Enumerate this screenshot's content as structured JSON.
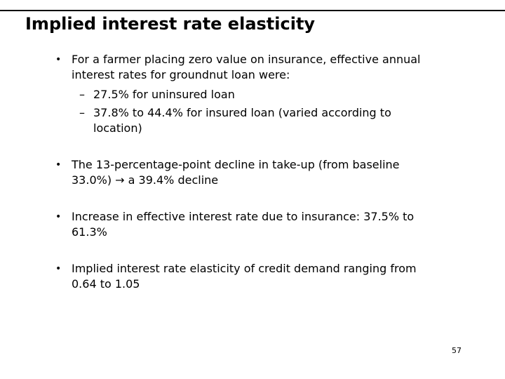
{
  "slide": {
    "title": "Implied interest rate elasticity",
    "page_number": "57",
    "markers": {
      "level1": "•",
      "level2": "–"
    },
    "colors": {
      "text": "#000000",
      "background": "#ffffff",
      "rule": "#000000"
    },
    "bullets": [
      {
        "lines": [
          "For a farmer placing zero value on insurance, effective annual",
          "interest rates for groundnut loan were:"
        ],
        "sub_bullets": [
          {
            "lines": [
              "27.5% for uninsured loan"
            ]
          },
          {
            "lines": [
              "37.8% to 44.4% for insured loan (varied according to",
              "location)"
            ]
          }
        ]
      },
      {
        "lines": [
          "The 13-percentage-point decline in take-up (from baseline",
          "33.0%) → a 39.4% decline"
        ]
      },
      {
        "lines": [
          "Increase in effective interest rate due to insurance: 37.5% to",
          "61.3%"
        ]
      },
      {
        "lines": [
          "Implied interest rate elasticity of credit demand ranging from",
          "0.64 to 1.05"
        ]
      }
    ]
  }
}
